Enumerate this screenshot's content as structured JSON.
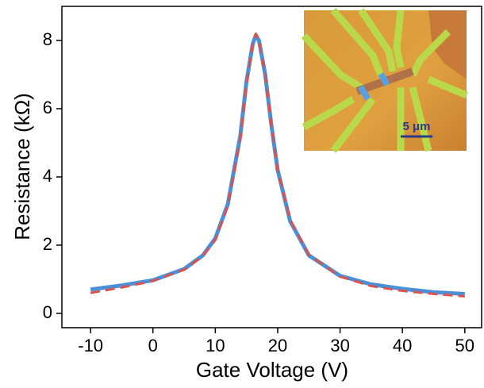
{
  "chart_data": {
    "type": "line",
    "x_label": "Gate Voltage (V)",
    "y_label": "Resistance (kΩ)",
    "x": [
      -10,
      -5,
      0,
      5,
      8,
      10,
      12,
      14,
      15,
      16,
      16.5,
      17,
      18,
      19,
      20,
      22,
      25,
      30,
      35,
      40,
      45,
      50
    ],
    "series": [
      {
        "color": "#4a90d9",
        "dash": false,
        "values": [
          0.7,
          0.82,
          0.97,
          1.3,
          1.7,
          2.2,
          3.2,
          5.2,
          6.8,
          7.9,
          8.15,
          8.0,
          7.0,
          5.5,
          4.2,
          2.7,
          1.7,
          1.1,
          0.85,
          0.72,
          0.62,
          0.57
        ]
      },
      {
        "color": "#d9534f",
        "dash": true,
        "values": [
          0.6,
          0.76,
          0.95,
          1.28,
          1.68,
          2.15,
          3.15,
          5.1,
          6.7,
          7.9,
          8.2,
          8.0,
          7.0,
          5.5,
          4.2,
          2.75,
          1.72,
          1.08,
          0.8,
          0.66,
          0.57,
          0.5
        ]
      }
    ],
    "xlim": [
      -14.6,
      52.7
    ],
    "xticks": [
      -10,
      0,
      10,
      20,
      30,
      40,
      50
    ],
    "ylim": [
      -0.42,
      9
    ],
    "yticks": [
      0,
      2,
      4,
      6,
      8
    ],
    "grid": false,
    "inset": {
      "scale_label": "5 μm"
    }
  }
}
